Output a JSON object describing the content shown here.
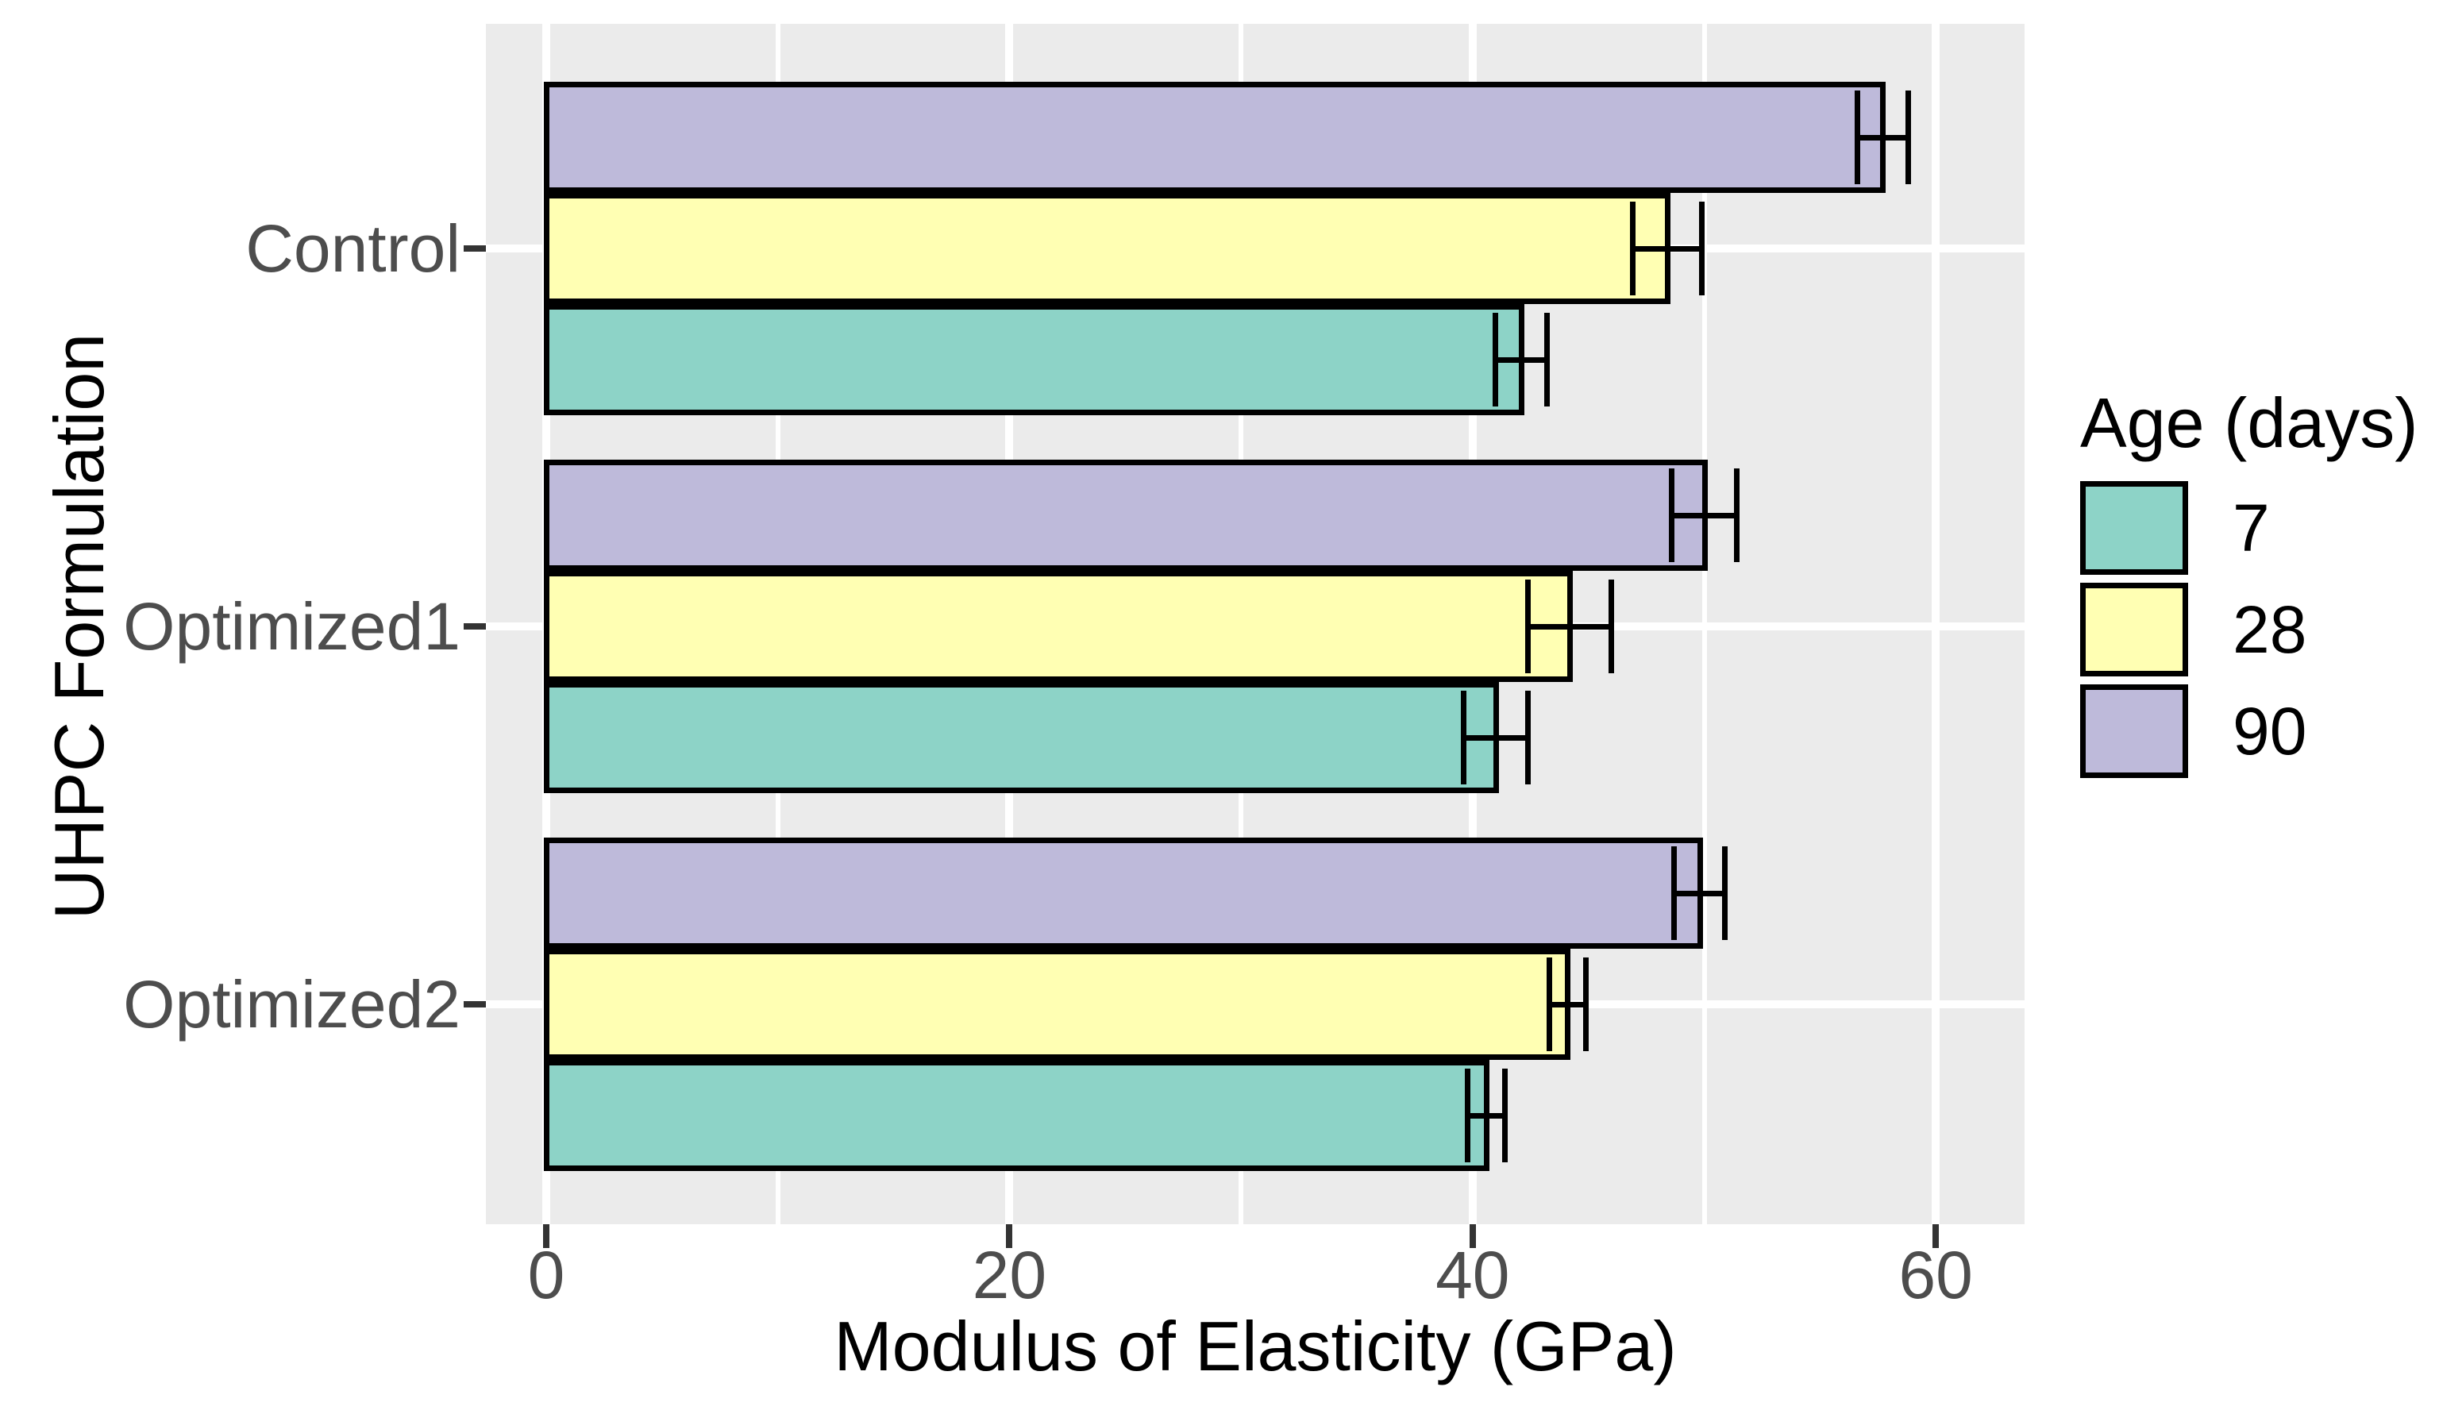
{
  "chart_data": {
    "type": "bar",
    "orientation": "horizontal",
    "title": "",
    "xlabel": "Modulus of Elasticity (GPa)",
    "ylabel": "UHPC Formulation",
    "categories": [
      "Control",
      "Optimized1",
      "Optimized2"
    ],
    "series": [
      {
        "name": "7",
        "color": "#8DD3C7",
        "values": [
          42.1,
          41.0,
          40.6
        ],
        "errors": [
          1.1,
          1.4,
          0.8
        ]
      },
      {
        "name": "28",
        "color": "#FFFFB3",
        "values": [
          48.4,
          44.2,
          44.1
        ],
        "errors": [
          1.5,
          1.8,
          0.8
        ]
      },
      {
        "name": "90",
        "color": "#BEBADA",
        "values": [
          57.7,
          50.0,
          49.8
        ],
        "errors": [
          1.1,
          1.4,
          1.1
        ]
      }
    ],
    "bar_stack_order_top_to_bottom": [
      "90",
      "28",
      "7"
    ],
    "error_bars": true,
    "xlim": [
      0,
      63.8
    ],
    "x_ticks": [
      0,
      20,
      40,
      60
    ],
    "x_minor_ticks": [
      10,
      30,
      50
    ],
    "grid": true,
    "legend": {
      "title": "Age (days)",
      "position": "right",
      "entries": [
        "7",
        "28",
        "90"
      ]
    },
    "colors": {
      "panel_background": "#EBEBEB",
      "grid": "#FFFFFF",
      "bar_border": "#000000",
      "tick_label": "#4D4D4D",
      "axis_title": "#000000",
      "tick_mark": "#333333"
    }
  }
}
